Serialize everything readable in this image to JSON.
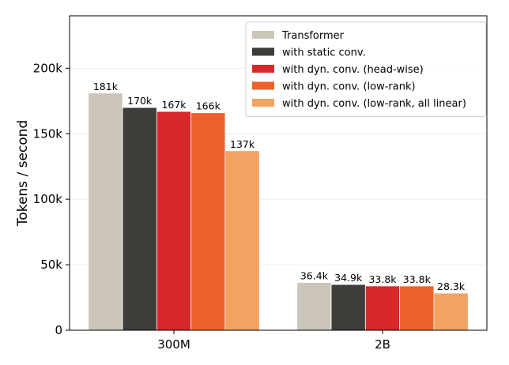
{
  "chart_data": {
    "type": "bar",
    "categories": [
      "300M",
      "2B"
    ],
    "series": [
      {
        "name": "Transformer",
        "color": "#cbc5b9",
        "values": [
          181000,
          36400
        ],
        "labels": [
          "181k",
          "36.4k"
        ]
      },
      {
        "name": "with static conv.",
        "color": "#3e3d39",
        "values": [
          170000,
          34900
        ],
        "labels": [
          "170k",
          "34.9k"
        ]
      },
      {
        "name": "with dyn. conv. (head-wise)",
        "color": "#d7282a",
        "values": [
          167000,
          33800
        ],
        "labels": [
          "167k",
          "33.8k"
        ]
      },
      {
        "name": "with dyn. conv. (low-rank)",
        "color": "#ed622c",
        "values": [
          166000,
          33800
        ],
        "labels": [
          "166k",
          "33.8k"
        ]
      },
      {
        "name": "with dyn. conv. (low-rank, all linear)",
        "color": "#f2a261",
        "values": [
          137000,
          28300
        ],
        "labels": [
          "137k",
          "28.3k"
        ]
      }
    ],
    "ylabel": "Tokens / second",
    "xlabel": "",
    "ylim": [
      0,
      240000
    ],
    "yticks": [
      0,
      50000,
      100000,
      150000,
      200000
    ],
    "ytick_labels": [
      "0",
      "50k",
      "100k",
      "150k",
      "200k"
    ],
    "grid": "y",
    "legend_position": "top-right"
  }
}
